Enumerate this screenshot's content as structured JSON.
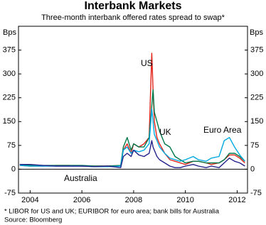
{
  "chart_data": {
    "type": "line",
    "title": "Interbank Markets",
    "subtitle": "Three-month interbank offered rates spread to swap*",
    "y_unit": "Bps",
    "notes": [
      "*   LIBOR for US and UK; EURIBOR for euro area; bank bills for Australia",
      "Source: Bloomberg"
    ],
    "x": [
      2003.6,
      2004.0,
      2004.5,
      2005.0,
      2005.5,
      2006.0,
      2006.5,
      2007.0,
      2007.5,
      2007.6,
      2007.75,
      2007.9,
      2008.0,
      2008.2,
      2008.4,
      2008.6,
      2008.7,
      2008.75,
      2008.8,
      2008.9,
      2009.0,
      2009.2,
      2009.4,
      2009.6,
      2009.8,
      2010.0,
      2010.3,
      2010.5,
      2010.8,
      2011.0,
      2011.3,
      2011.5,
      2011.7,
      2011.9,
      2012.1,
      2012.3
    ],
    "series": [
      {
        "name": "US",
        "color": "#e2231a",
        "values": [
          12,
          10,
          10,
          12,
          12,
          10,
          10,
          10,
          12,
          60,
          80,
          50,
          80,
          70,
          80,
          100,
          365,
          250,
          150,
          100,
          80,
          50,
          30,
          25,
          20,
          15,
          25,
          25,
          20,
          15,
          20,
          30,
          45,
          45,
          35,
          20
        ]
      },
      {
        "name": "UK",
        "color": "#00784a",
        "values": [
          15,
          12,
          12,
          12,
          12,
          12,
          10,
          10,
          12,
          70,
          100,
          60,
          80,
          70,
          70,
          100,
          200,
          250,
          180,
          150,
          120,
          80,
          70,
          40,
          30,
          20,
          25,
          25,
          20,
          20,
          20,
          30,
          50,
          50,
          40,
          25
        ]
      },
      {
        "name": "Euro Area",
        "color": "#00a9e0",
        "values": [
          12,
          10,
          10,
          10,
          10,
          10,
          8,
          8,
          10,
          60,
          70,
          50,
          60,
          55,
          60,
          80,
          190,
          150,
          110,
          90,
          70,
          50,
          35,
          30,
          25,
          30,
          40,
          30,
          25,
          35,
          40,
          90,
          100,
          70,
          45,
          25
        ]
      },
      {
        "name": "Australia",
        "color": "#22228a",
        "values": [
          15,
          15,
          12,
          10,
          10,
          10,
          8,
          10,
          5,
          40,
          50,
          40,
          60,
          45,
          40,
          50,
          90,
          70,
          60,
          40,
          30,
          20,
          10,
          5,
          5,
          10,
          15,
          10,
          5,
          10,
          5,
          20,
          35,
          25,
          20,
          10
        ]
      }
    ],
    "xlim": [
      2003.55,
      2012.4
    ],
    "xticks": [
      2004,
      2006,
      2008,
      2010,
      2012
    ],
    "ylim": [
      -75,
      450
    ],
    "yticks": [
      -75,
      0,
      75,
      150,
      225,
      300,
      375
    ],
    "grid": false
  }
}
